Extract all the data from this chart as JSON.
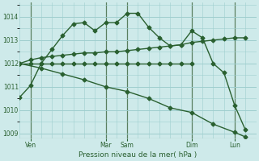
{
  "background_color": "#ceeaea",
  "grid_color": "#9ecece",
  "line_color": "#2a6030",
  "xlabel": "Pression niveau de la mer( hPa )",
  "ylim": [
    1008.8,
    1014.6
  ],
  "xlim": [
    0,
    22
  ],
  "yticks": [
    1009,
    1010,
    1011,
    1012,
    1013,
    1014
  ],
  "day_labels": [
    "Ven",
    "Mar",
    "Sam",
    "Dim",
    "Lun"
  ],
  "day_tick_x": [
    1,
    8,
    10,
    16,
    20
  ],
  "day_vline_x": [
    1,
    8,
    10,
    16,
    20
  ],
  "series1_x": [
    0,
    1,
    2,
    3,
    4,
    5,
    6,
    7,
    8,
    9,
    10,
    11,
    12,
    13,
    14,
    15,
    16,
    17,
    18,
    19,
    20,
    21
  ],
  "series1_y": [
    1010.55,
    1011.05,
    1012.0,
    1012.6,
    1013.2,
    1013.7,
    1013.75,
    1013.4,
    1013.75,
    1013.75,
    1014.15,
    1014.15,
    1013.55,
    1013.1,
    1012.75,
    1012.8,
    1013.4,
    1013.1,
    1012.0,
    1011.6,
    1010.2,
    1009.15
  ],
  "series2_x": [
    0,
    1,
    2,
    3,
    4,
    5,
    6,
    7,
    8,
    9,
    10,
    11,
    12,
    13,
    14,
    15,
    16,
    17,
    18,
    19,
    20,
    21
  ],
  "series2_y": [
    1012.0,
    1012.15,
    1012.25,
    1012.3,
    1012.35,
    1012.4,
    1012.45,
    1012.45,
    1012.5,
    1012.5,
    1012.55,
    1012.6,
    1012.65,
    1012.7,
    1012.75,
    1012.8,
    1012.9,
    1012.95,
    1013.0,
    1013.05,
    1013.1,
    1013.1
  ],
  "series3_x": [
    0,
    1,
    2,
    3,
    4,
    5,
    6,
    7,
    8,
    9,
    10,
    11,
    12,
    13,
    14,
    15,
    16
  ],
  "series3_y": [
    1012.0,
    1012.0,
    1012.0,
    1012.0,
    1012.0,
    1012.0,
    1012.0,
    1012.0,
    1012.0,
    1012.0,
    1012.0,
    1012.0,
    1012.0,
    1012.0,
    1012.0,
    1012.0,
    1012.0
  ],
  "series4_x": [
    0,
    2,
    4,
    6,
    8,
    10,
    12,
    14,
    16,
    18,
    20,
    21
  ],
  "series4_y": [
    1012.0,
    1011.8,
    1011.55,
    1011.3,
    1011.0,
    1010.8,
    1010.5,
    1010.1,
    1009.9,
    1009.4,
    1009.05,
    1008.85
  ]
}
